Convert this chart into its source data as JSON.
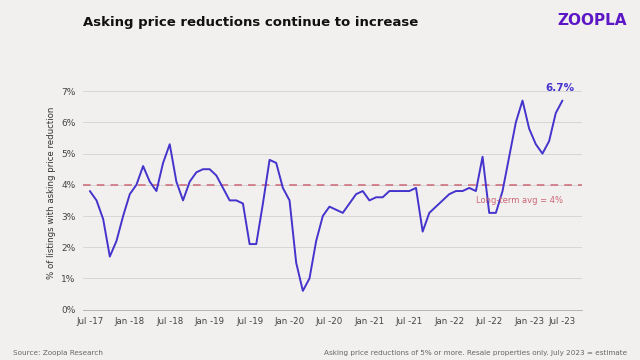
{
  "title": "Asking price reductions continue to increase",
  "ylabel": "% of listings with asking price reduction",
  "brand": "ZOOPLA",
  "brand_color": "#5C16C5",
  "line_color": "#4433CC",
  "avg_color": "#CC6677",
  "avg_value": 4.0,
  "avg_label": "Long-term avg = 4%",
  "end_label": "6.7%",
  "background_color": "#F2F0EE",
  "source_left": "Source: Zoopla Research",
  "source_right": "Asking price reductions of 5% or more. Resale properties only. July 2023 = estimate",
  "x_labels": [
    "Jul -17",
    "Jan -18",
    "Jul -18",
    "Jan -19",
    "Jul -19",
    "Jan -20",
    "Jul -20",
    "Jan -21",
    "Jul -21",
    "Jan -22",
    "Jul -22",
    "Jan -23",
    "Jul -23"
  ],
  "ylim": [
    0,
    7.5
  ],
  "yticks": [
    0,
    1,
    2,
    3,
    4,
    5,
    6,
    7
  ],
  "ytick_labels": [
    "0%",
    "1%",
    "2%",
    "3%",
    "4%",
    "5%",
    "6%",
    "7%"
  ],
  "data_y": [
    3.8,
    3.5,
    2.9,
    1.7,
    2.2,
    3.0,
    3.7,
    4.0,
    4.6,
    4.1,
    3.8,
    4.7,
    5.3,
    4.1,
    3.5,
    4.1,
    4.4,
    4.5,
    4.5,
    4.3,
    3.9,
    3.5,
    3.5,
    3.4,
    2.1,
    2.1,
    3.4,
    4.8,
    4.7,
    3.9,
    3.5,
    1.5,
    0.6,
    1.0,
    2.2,
    3.0,
    3.3,
    3.2,
    3.1,
    3.4,
    3.7,
    3.8,
    3.5,
    3.6,
    3.6,
    3.8,
    3.8,
    3.8,
    3.8,
    3.9,
    2.5,
    3.1,
    3.3,
    3.5,
    3.7,
    3.8,
    3.8,
    3.9,
    3.8,
    4.9,
    3.1,
    3.1,
    3.8,
    4.9,
    6.0,
    6.7,
    5.8,
    5.3,
    5.0,
    5.4,
    6.3,
    6.7
  ]
}
